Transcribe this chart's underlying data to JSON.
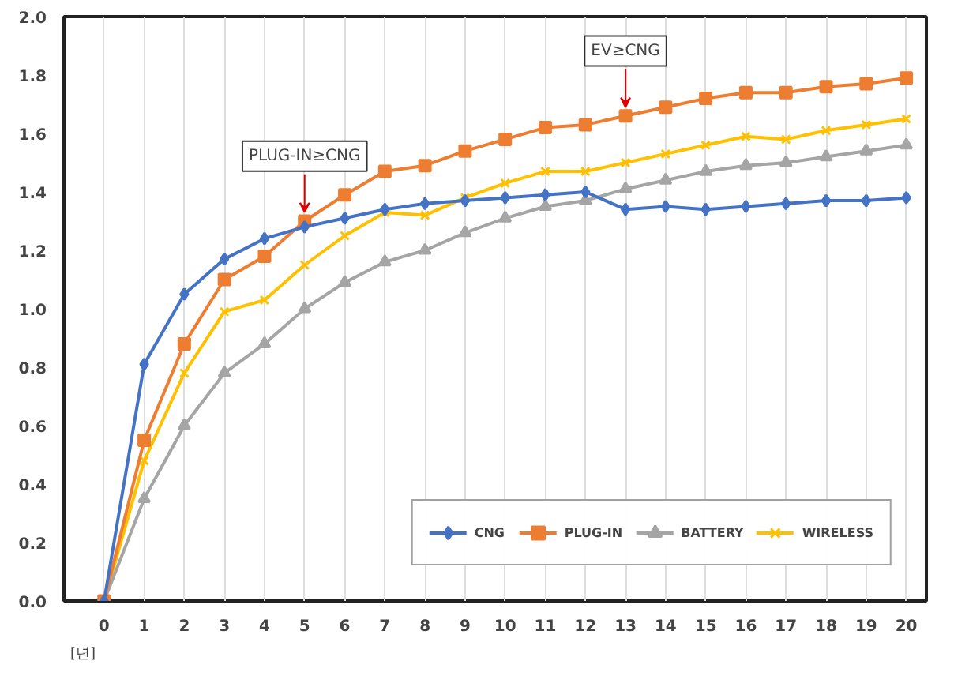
{
  "chart_data": {
    "type": "line",
    "xlabel": "[년]",
    "x": [
      0,
      1,
      2,
      3,
      4,
      5,
      6,
      7,
      8,
      9,
      10,
      11,
      12,
      13,
      14,
      15,
      16,
      17,
      18,
      19,
      20
    ],
    "xlim": [
      -1,
      20.5
    ],
    "xticks": [
      0,
      1,
      2,
      3,
      4,
      5,
      6,
      7,
      8,
      9,
      10,
      11,
      12,
      13,
      14,
      15,
      16,
      17,
      18,
      19,
      20
    ],
    "ylim": [
      0,
      2.0
    ],
    "yticks": [
      {
        "value": 0,
        "label": "0.0"
      },
      {
        "value": 0.2,
        "label": "0.2"
      },
      {
        "value": 0.4,
        "label": "0.4"
      },
      {
        "value": 0.6,
        "label": "0.6"
      },
      {
        "value": 0.8,
        "label": "0.8"
      },
      {
        "value": 1.0,
        "label": "1.0"
      },
      {
        "value": 1.2,
        "label": "1.2"
      },
      {
        "value": 1.4,
        "label": "1.4"
      },
      {
        "value": 1.6,
        "label": "1.6"
      },
      {
        "value": 1.8,
        "label": "1.8"
      },
      {
        "value": 2.0,
        "label": "2.0"
      }
    ],
    "grid": "x",
    "legend": "bottom right",
    "series": [
      {
        "name": "CNG",
        "color": "#4472c4",
        "marker": "diamond",
        "values": [
          0,
          0.81,
          1.05,
          1.17,
          1.24,
          1.28,
          1.31,
          1.34,
          1.36,
          1.37,
          1.38,
          1.39,
          1.4,
          1.34,
          1.35,
          1.34,
          1.35,
          1.36,
          1.37,
          1.37,
          1.38
        ]
      },
      {
        "name": "PLUG-IN",
        "color": "#ed7d31",
        "marker": "square",
        "values": [
          0,
          0.55,
          0.88,
          1.1,
          1.18,
          1.3,
          1.39,
          1.47,
          1.49,
          1.54,
          1.58,
          1.62,
          1.63,
          1.66,
          1.69,
          1.72,
          1.74,
          1.74,
          1.76,
          1.77,
          1.79
        ]
      },
      {
        "name": "BATTERY",
        "color": "#a5a5a5",
        "marker": "triangle",
        "values": [
          0,
          0.35,
          0.6,
          0.78,
          0.88,
          1.0,
          1.09,
          1.16,
          1.2,
          1.26,
          1.31,
          1.35,
          1.37,
          1.41,
          1.44,
          1.47,
          1.49,
          1.5,
          1.52,
          1.54,
          1.56
        ]
      },
      {
        "name": "WIRELESS",
        "color": "#ffc000",
        "marker": "cross",
        "values": [
          0,
          0.48,
          0.78,
          0.99,
          1.03,
          1.15,
          1.25,
          1.33,
          1.32,
          1.38,
          1.43,
          1.47,
          1.47,
          1.5,
          1.53,
          1.56,
          1.59,
          1.58,
          1.61,
          1.63,
          1.65
        ]
      }
    ],
    "annotations": [
      {
        "text": "PLUG-IN≥CNG",
        "x": 5,
        "y": 1.3
      },
      {
        "text": "EV≥CNG",
        "x": 13,
        "y": 1.66
      }
    ]
  }
}
